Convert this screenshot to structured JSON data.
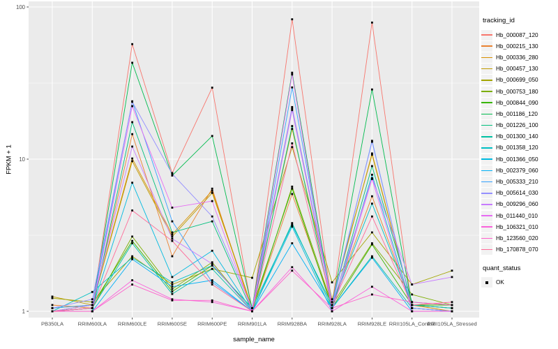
{
  "figure": {
    "background": "#FFFFFF",
    "panel_background": "#EBEBEB",
    "grid_color": "#FFFFFF",
    "axis_text_color": "#4D4D4D",
    "marker_color": "#000000"
  },
  "legend": {
    "tracking_title": "tracking_id",
    "quant_title": "quant_status",
    "quant_ok_label": "OK",
    "key_fill": "#F2F2F2",
    "ok_marker": "black-square"
  },
  "chart_data": {
    "type": "line",
    "title": "",
    "xlabel": "sample_name",
    "ylabel": "FPKM + 1",
    "y_scale": "log10",
    "ylim": [
      1,
      100
    ],
    "y_ticks": [
      1,
      10,
      100
    ],
    "y_minor_ticks": [
      3.162,
      31.62
    ],
    "grid": true,
    "legend_position": "right",
    "point_marker": "small-black-square",
    "x_categories": [
      "PB350LA",
      "RRIM600LA",
      "RRIM600LE",
      "RRIM600SE",
      "RRIM600PE",
      "RRIM901LA",
      "RRIM928BA",
      "RRIM928LA",
      "RRIM928LE",
      "RRII105LA_Control",
      "RRII105LA_Stressed"
    ],
    "series": [
      {
        "name": "Hb_000087_120",
        "color": "#F8766D",
        "values": [
          1.0,
          1.05,
          57,
          8.1,
          29.5,
          1.0,
          83,
          1.1,
          79,
          1.05,
          1.0
        ]
      },
      {
        "name": "Hb_000215_130",
        "color": "#EA8331",
        "values": [
          1.1,
          1.05,
          14.6,
          2.3,
          6.4,
          1.0,
          5.9,
          1.1,
          5.7,
          1.1,
          1.05
        ]
      },
      {
        "name": "Hb_000336_280",
        "color": "#D89000",
        "values": [
          1.05,
          1.1,
          10.1,
          3.2,
          6.2,
          1.05,
          21.5,
          1.15,
          10.9,
          1.1,
          1.0
        ]
      },
      {
        "name": "Hb_000457_130",
        "color": "#C09B00",
        "values": [
          1.25,
          1.1,
          9.7,
          3.1,
          6.0,
          1.05,
          15.8,
          1.2,
          10.7,
          1.1,
          1.05
        ]
      },
      {
        "name": "Hb_000699_050",
        "color": "#A3A500",
        "values": [
          1.22,
          1.15,
          2.3,
          1.5,
          1.9,
          1.66,
          12.0,
          1.55,
          3.3,
          1.5,
          1.85
        ]
      },
      {
        "name": "Hb_000753_180",
        "color": "#7CAE00",
        "values": [
          1.0,
          1.05,
          3.1,
          1.4,
          2.1,
          1.0,
          6.6,
          1.1,
          2.8,
          1.29,
          1.1
        ]
      },
      {
        "name": "Hb_000844_090",
        "color": "#39B600",
        "values": [
          1.0,
          1.1,
          2.9,
          1.35,
          2.0,
          1.05,
          6.4,
          1.05,
          2.75,
          1.1,
          1.1
        ]
      },
      {
        "name": "Hb_001186_120",
        "color": "#00BB4E",
        "values": [
          1.0,
          1.05,
          43,
          7.8,
          14.2,
          1.05,
          37,
          1.1,
          28.7,
          1.1,
          1.05
        ]
      },
      {
        "name": "Hb_001226_100",
        "color": "#00BF7D",
        "values": [
          1.0,
          1.0,
          17.5,
          3.3,
          3.9,
          1.0,
          16.5,
          1.05,
          9.0,
          1.15,
          1.1
        ]
      },
      {
        "name": "Hb_001300_140",
        "color": "#00C1A3",
        "values": [
          1.0,
          1.05,
          2.8,
          1.3,
          1.9,
          1.0,
          3.8,
          1.05,
          2.3,
          1.05,
          1.0
        ]
      },
      {
        "name": "Hb_001358_120",
        "color": "#00BFC4",
        "values": [
          1.0,
          1.34,
          2.25,
          1.55,
          2.0,
          1.05,
          3.7,
          1.1,
          5.1,
          1.1,
          1.05
        ]
      },
      {
        "name": "Hb_001366_050",
        "color": "#00BAE0",
        "values": [
          1.0,
          1.05,
          7.0,
          1.68,
          2.5,
          1.0,
          3.6,
          1.0,
          7.9,
          1.05,
          1.0
        ]
      },
      {
        "name": "Hb_002379_060",
        "color": "#00B0F6",
        "values": [
          1.0,
          1.0,
          2.2,
          1.45,
          1.6,
          1.0,
          2.8,
          1.05,
          2.25,
          1.0,
          1.0
        ]
      },
      {
        "name": "Hb_005333_210",
        "color": "#35A2FF",
        "values": [
          1.05,
          1.1,
          24,
          3.9,
          1.55,
          1.0,
          29.6,
          1.1,
          13.2,
          1.05,
          1.0
        ]
      },
      {
        "name": "Hb_005614_030",
        "color": "#9590FF",
        "values": [
          1.05,
          1.2,
          23.8,
          8.0,
          4.2,
          1.05,
          22,
          1.15,
          13.0,
          1.05,
          1.0
        ]
      },
      {
        "name": "Hb_009296_060",
        "color": "#C77CFF",
        "values": [
          1.0,
          1.1,
          12.1,
          3.0,
          2.05,
          1.0,
          21,
          1.1,
          7.5,
          1.5,
          1.68
        ]
      },
      {
        "name": "Hb_011440_010",
        "color": "#E76BF3",
        "values": [
          1.0,
          1.05,
          22.3,
          4.8,
          5.3,
          1.0,
          36,
          1.0,
          7.4,
          1.0,
          1.0
        ]
      },
      {
        "name": "Hb_106321_010",
        "color": "#FA62DB",
        "values": [
          1.0,
          1.0,
          1.6,
          1.2,
          1.15,
          1.0,
          1.95,
          1.0,
          1.45,
          1.0,
          1.0
        ]
      },
      {
        "name": "Hb_123560_020",
        "color": "#FF61CC",
        "values": [
          1.0,
          1.0,
          1.5,
          1.18,
          1.18,
          1.0,
          1.85,
          1.05,
          1.29,
          1.15,
          1.1
        ]
      },
      {
        "name": "Hb_170878_070",
        "color": "#FF6A98",
        "values": [
          1.0,
          1.05,
          4.6,
          2.9,
          1.5,
          1.0,
          12.7,
          1.1,
          4.2,
          1.1,
          1.15
        ]
      }
    ]
  }
}
